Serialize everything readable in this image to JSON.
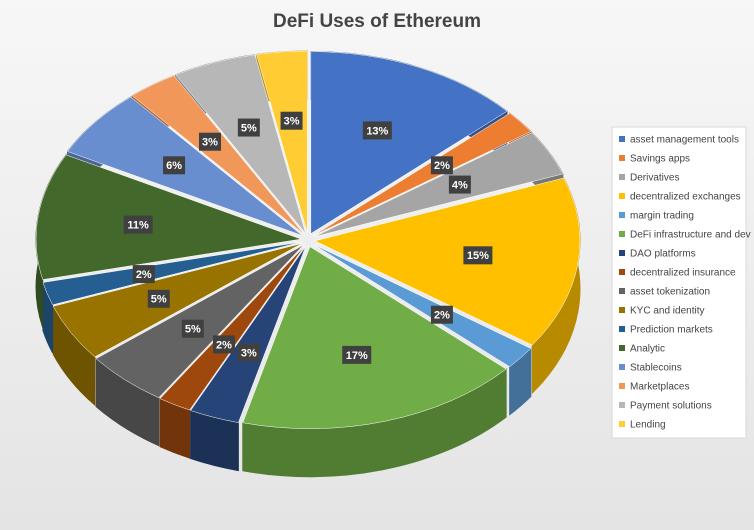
{
  "chart_data": {
    "type": "pie",
    "title": "DeFi Uses of Ethereum",
    "categories": [
      "asset management tools",
      "Savings apps",
      "Derivatives",
      "decentralized exchanges",
      "margin trading",
      "DeFi infrastructure and dev",
      "DAO platforms",
      "decentralized insurance",
      "asset tokenization",
      "KYC and identity",
      "Prediction markets",
      "Analytic",
      "Stablecoins",
      "Marketplaces",
      "Payment solutions",
      "Lending"
    ],
    "values": [
      13,
      2,
      4,
      15,
      2,
      17,
      3,
      2,
      5,
      5,
      2,
      11,
      6,
      3,
      5,
      3
    ],
    "value_labels": [
      "13%",
      "2%",
      "4%",
      "15%",
      "2%",
      "17%",
      "3%",
      "2%",
      "5%",
      "5%",
      "2%",
      "11%",
      "6%",
      "3%",
      "5%",
      "3%"
    ],
    "colors": [
      "#4472c4",
      "#ed7d31",
      "#a5a5a5",
      "#ffc000",
      "#5b9bd5",
      "#70ad47",
      "#264478",
      "#9e480e",
      "#636363",
      "#997300",
      "#255e91",
      "#43682b",
      "#698ed0",
      "#f1975a",
      "#b7b7b7",
      "#ffcd33"
    ],
    "legend": "right"
  }
}
